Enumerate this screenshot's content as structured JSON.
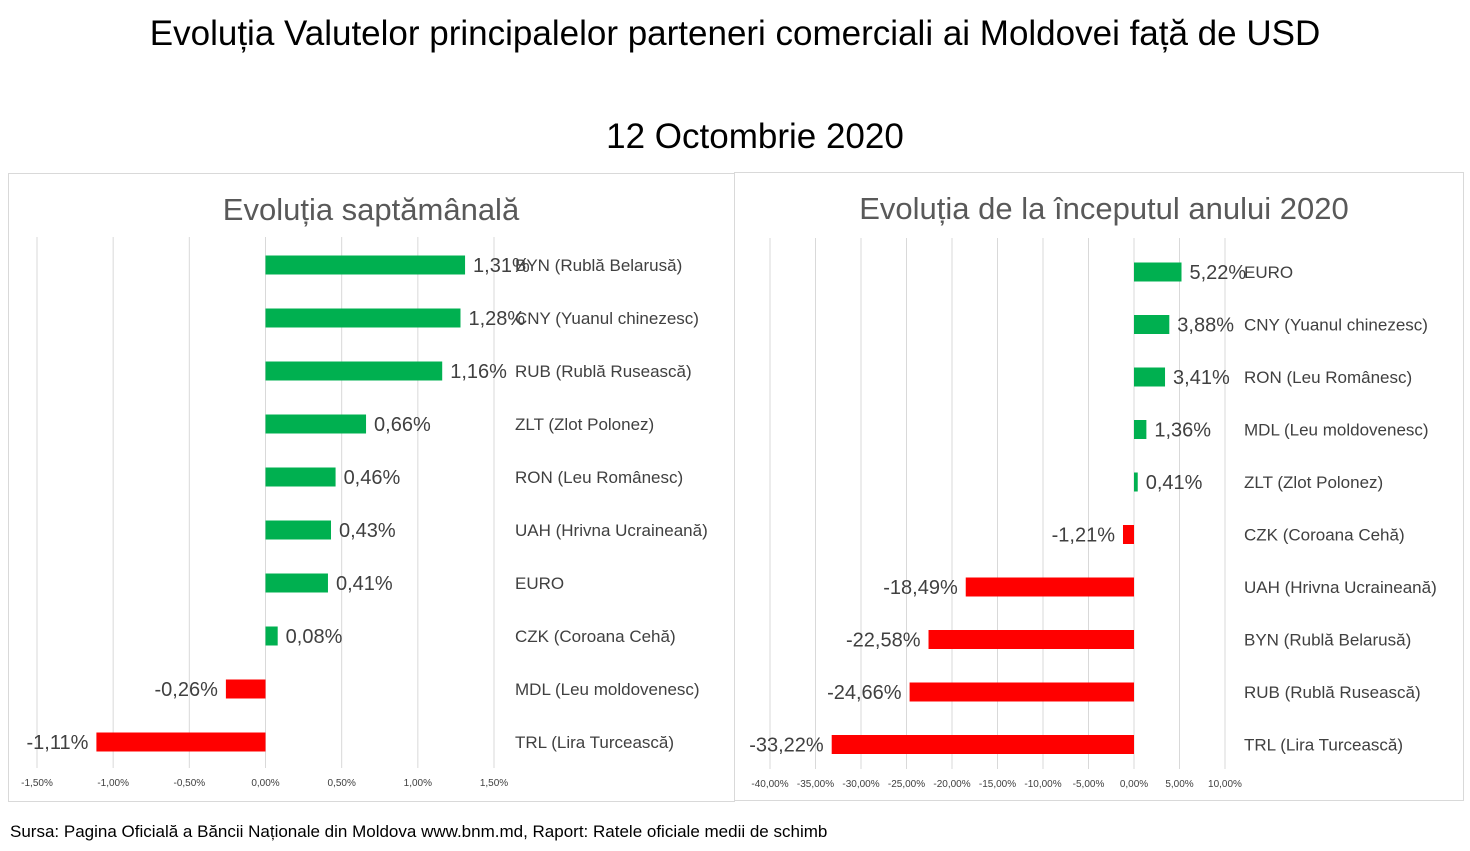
{
  "title": "Evoluția Valutelor principalelor parteneri comerciali ai Moldovei față de USD",
  "subtitle": "12 Octombrie 2020",
  "source": "Sursa: Pagina Oficială a Băncii Naționale din Moldova www.bnm.md, Raport: Ratele oficiale medii de schimb",
  "colors": {
    "positive": "#00b050",
    "negative": "#ff0000",
    "grid": "#d9d9d9",
    "text": "#404040",
    "title": "#595959"
  },
  "chart_data": [
    {
      "type": "bar",
      "orientation": "horizontal",
      "title": "Evoluția saptămânală",
      "categories": [
        "BYN (Rublă Belarusă)",
        "CNY (Yuanul chinezesc)",
        "RUB (Rublă Rusească)",
        "ZLT (Zlot Polonez)",
        "RON (Leu Românesc)",
        "UAH (Hrivna Ucraineană)",
        "EURO",
        "CZK (Coroana Cehă)",
        "MDL (Leu moldovenesc)",
        "TRL (Lira Turcească)"
      ],
      "values": [
        1.31,
        1.28,
        1.16,
        0.66,
        0.46,
        0.43,
        0.41,
        0.08,
        -0.26,
        -1.11
      ],
      "value_labels": [
        "1,31%",
        "1,28%",
        "1,16%",
        "0,66%",
        "0,46%",
        "0,43%",
        "0,41%",
        "0,08%",
        "-0,26%",
        "-1,11%"
      ],
      "xlim": [
        -1.5,
        1.5
      ],
      "xticks": [
        -1.5,
        -1.0,
        -0.5,
        0.0,
        0.5,
        1.0,
        1.5
      ],
      "xtick_labels": [
        "-1,50%",
        "-1,00%",
        "-0,50%",
        "0,00%",
        "0,50%",
        "1,00%",
        "1,50%"
      ],
      "grid": true,
      "legend": "none"
    },
    {
      "type": "bar",
      "orientation": "horizontal",
      "title": "Evoluția de la începutul anului 2020",
      "categories": [
        "EURO",
        "CNY (Yuanul chinezesc)",
        "RON (Leu Românesc)",
        "MDL (Leu moldovenesc)",
        "ZLT (Zlot Polonez)",
        "CZK (Coroana Cehă)",
        "UAH (Hrivna Ucraineană)",
        "BYN (Rublă Belarusă)",
        "RUB (Rublă Rusească)",
        "TRL (Lira Turcească)"
      ],
      "values": [
        5.22,
        3.88,
        3.41,
        1.36,
        0.41,
        -1.21,
        -18.49,
        -22.58,
        -24.66,
        -33.22
      ],
      "value_labels": [
        "5,22%",
        "3,88%",
        "3,41%",
        "1,36%",
        "0,41%",
        "-1,21%",
        "-18,49%",
        "-22,58%",
        "-24,66%",
        "-33,22%"
      ],
      "xlim": [
        -40,
        10
      ],
      "xticks": [
        -40,
        -35,
        -30,
        -25,
        -20,
        -15,
        -10,
        -5,
        0,
        5,
        10
      ],
      "xtick_labels": [
        "-40,00%",
        "-35,00%",
        "-30,00%",
        "-25,00%",
        "-20,00%",
        "-15,00%",
        "-10,00%",
        "-5,00%",
        "0,00%",
        "5,00%",
        "10,00%"
      ],
      "grid": true,
      "legend": "none"
    }
  ]
}
